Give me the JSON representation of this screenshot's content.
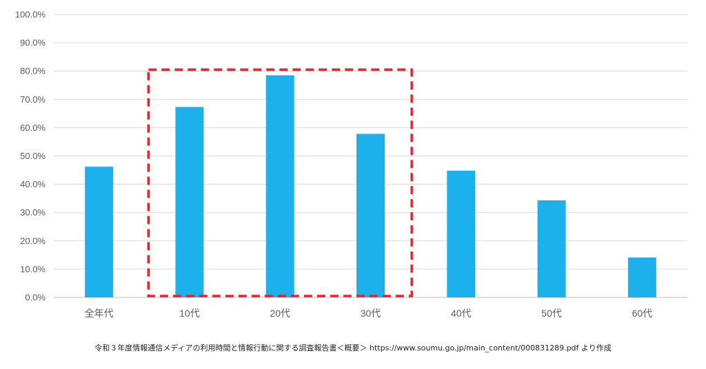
{
  "chart_data": {
    "type": "bar",
    "categories": [
      "全年代",
      "10代",
      "20代",
      "30代",
      "40代",
      "50代",
      "60代"
    ],
    "values": [
      46.2,
      67.3,
      78.5,
      57.8,
      44.8,
      34.3,
      14.1
    ],
    "ylim": [
      0,
      100
    ],
    "yticks": [
      "0.0%",
      "10.0%",
      "20.0%",
      "30.0%",
      "40.0%",
      "50.0%",
      "60.0%",
      "70.0%",
      "80.0%",
      "90.0%",
      "100.0%"
    ],
    "grid": true,
    "highlight": {
      "from_category": "10代",
      "to_category": "30代",
      "top_value": 80.5,
      "style": "dashed"
    },
    "colors": {
      "bar": "#1cb0ec",
      "grid": "#d9d9d9",
      "highlight": "#e8232a"
    }
  },
  "source_note": "令和３年度情報通信メディアの利用時間と情報行動に関する調査報告書＜概要＞ https://www.soumu.go.jp/main_content/000831289.pdf より作成"
}
